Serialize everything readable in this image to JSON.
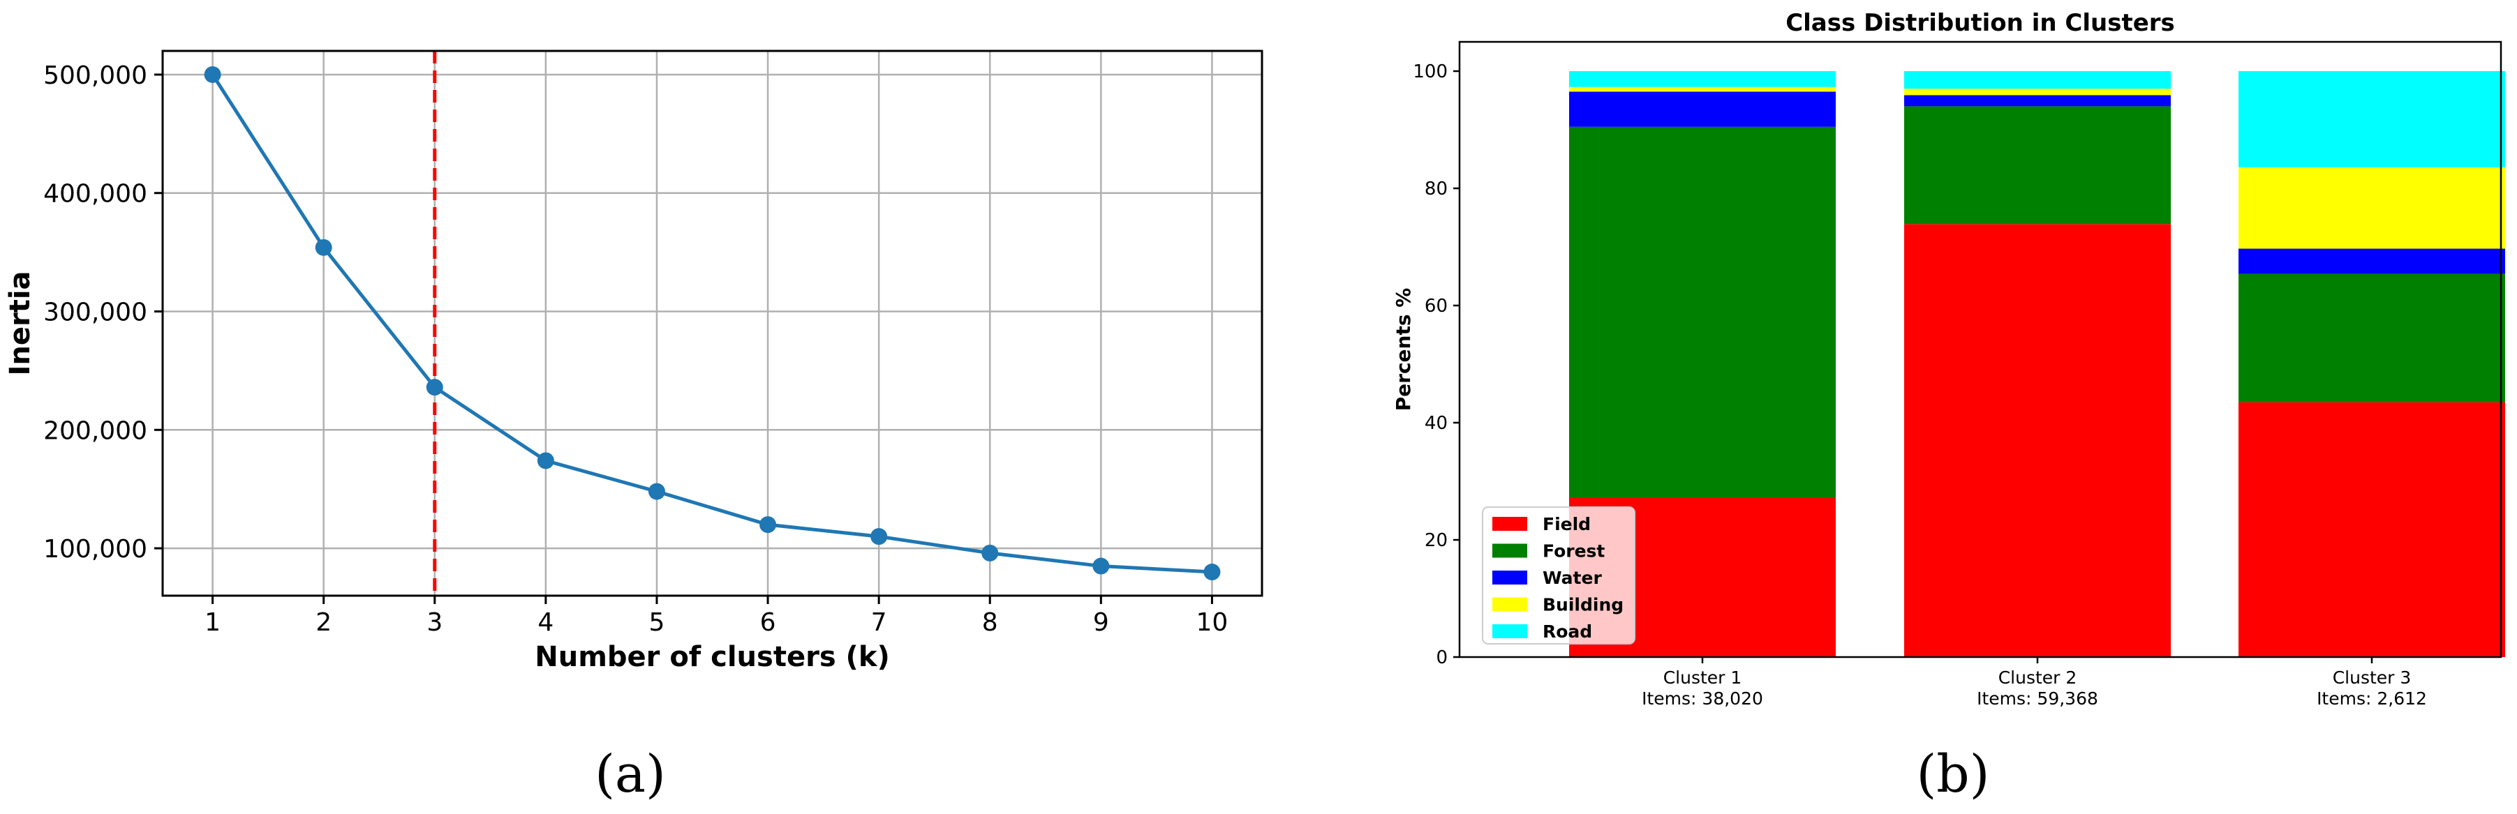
{
  "chart_data": [
    {
      "type": "line",
      "panel_label": "(a)",
      "title": "",
      "xlabel": "Number of clusters (k)",
      "ylabel": "Inertia",
      "x": [
        1,
        2,
        3,
        4,
        5,
        6,
        7,
        8,
        9,
        10
      ],
      "series": [
        {
          "values": [
            500000,
            354000,
            236000,
            174000,
            148000,
            120000,
            110000,
            96000,
            85000,
            80000
          ],
          "color": "#1f77b4"
        }
      ],
      "xlim": [
        0.55,
        10.45
      ],
      "ylim": [
        60000,
        520000
      ],
      "xticks": [
        "1",
        "2",
        "3",
        "4",
        "5",
        "6",
        "7",
        "8",
        "9",
        "10"
      ],
      "yticks": [
        {
          "value": 100000,
          "label": "100,000"
        },
        {
          "value": 200000,
          "label": "200,000"
        },
        {
          "value": 300000,
          "label": "300,000"
        },
        {
          "value": 400000,
          "label": "400,000"
        },
        {
          "value": 500000,
          "label": "500,000"
        }
      ],
      "vline": {
        "x": 3,
        "color": "#ff0000",
        "style": "dashed"
      },
      "grid": true
    },
    {
      "type": "bar",
      "stacked": true,
      "panel_label": "(b)",
      "title": "Class Distribution in Clusters",
      "xlabel": "",
      "ylabel": "Percents %",
      "categories": [
        "Cluster 1",
        "Cluster 2",
        "Cluster 3"
      ],
      "category_sublabels": [
        "Items: 38,020",
        "Items: 59,368",
        "Items: 2,612"
      ],
      "series": [
        {
          "name": "Field",
          "color": "#ff0000",
          "values": [
            27.2,
            73.9,
            43.5
          ]
        },
        {
          "name": "Forest",
          "color": "#008000",
          "values": [
            63.3,
            20.1,
            21.9
          ]
        },
        {
          "name": "Water",
          "color": "#0000ff",
          "values": [
            6.0,
            1.9,
            4.3
          ]
        },
        {
          "name": "Building",
          "color": "#ffff00",
          "values": [
            0.8,
            1.1,
            13.9
          ]
        },
        {
          "name": "Road",
          "color": "#00ffff",
          "values": [
            2.7,
            3.0,
            16.4
          ]
        }
      ],
      "ylim": [
        0,
        105
      ],
      "yticks": [
        "0",
        "20",
        "40",
        "60",
        "80",
        "100"
      ],
      "legend": "lower-left",
      "grid": false
    }
  ]
}
